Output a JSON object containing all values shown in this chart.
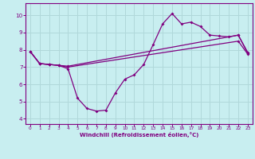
{
  "xlabel": "Windchill (Refroidissement éolien,°C)",
  "bg_color": "#c8eef0",
  "line_color": "#800080",
  "grid_color": "#b0d8da",
  "xlim": [
    -0.5,
    23.5
  ],
  "ylim": [
    3.7,
    10.7
  ],
  "xticks": [
    0,
    1,
    2,
    3,
    4,
    5,
    6,
    7,
    8,
    9,
    10,
    11,
    12,
    13,
    14,
    15,
    16,
    17,
    18,
    19,
    20,
    21,
    22,
    23
  ],
  "yticks": [
    4,
    5,
    6,
    7,
    8,
    9,
    10
  ],
  "line1_x": [
    0,
    1,
    2,
    3,
    4,
    5,
    6,
    7,
    8,
    9,
    10,
    11,
    12,
    13,
    14,
    15,
    16,
    17,
    18,
    19,
    20,
    21,
    22,
    23
  ],
  "line1_y": [
    7.9,
    7.2,
    7.15,
    7.1,
    6.9,
    5.2,
    4.6,
    4.45,
    4.5,
    5.5,
    6.3,
    6.55,
    7.15,
    8.3,
    9.5,
    10.1,
    9.5,
    9.6,
    9.35,
    8.85,
    8.8,
    8.75,
    8.85,
    7.8
  ],
  "line2_x": [
    0,
    1,
    2,
    3,
    4,
    22,
    23
  ],
  "line2_y": [
    7.9,
    7.2,
    7.15,
    7.1,
    7.05,
    8.85,
    7.85
  ],
  "line3_x": [
    0,
    1,
    2,
    3,
    4,
    22,
    23
  ],
  "line3_y": [
    7.9,
    7.2,
    7.15,
    7.1,
    7.0,
    8.5,
    7.75
  ]
}
